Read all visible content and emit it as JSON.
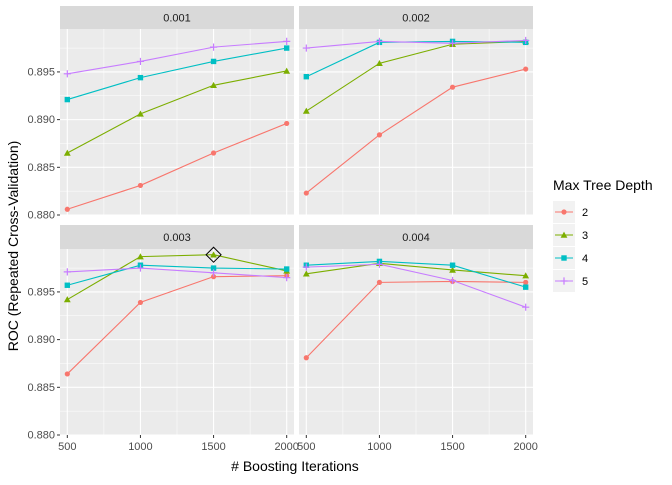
{
  "chart_data": {
    "type": "line",
    "xlabel": "# Boosting Iterations",
    "ylabel": "ROC (Repeated Cross-Validation)",
    "x": [
      500,
      1000,
      1500,
      2000
    ],
    "x_ticks": [
      500,
      1000,
      1500,
      2000
    ],
    "xlim": [
      450,
      2050
    ],
    "ylim": [
      0.88,
      0.8995
    ],
    "y_ticks": [
      0.88,
      0.885,
      0.89,
      0.895
    ],
    "y_tick_labels": [
      "0.880",
      "0.885",
      "0.890",
      "0.895"
    ],
    "grid": true,
    "legend": {
      "title": "Max Tree Depth",
      "placement": "right",
      "entries": [
        "2",
        "3",
        "4",
        "5"
      ]
    },
    "colors": {
      "2": "#F8766D",
      "3": "#7CAE00",
      "4": "#00BFC4",
      "5": "#C77CFF",
      "panel_bg": "#EBEBEB",
      "strip_bg": "#D9D9D9",
      "grid": "#FFFFFF",
      "axis_text": "#4D4D4D"
    },
    "facets": [
      {
        "label": "0.001",
        "series": [
          {
            "name": "2",
            "values": [
              0.8806,
              0.8831,
              0.8865,
              0.8896
            ]
          },
          {
            "name": "3",
            "values": [
              0.8865,
              0.8906,
              0.8936,
              0.8951
            ]
          },
          {
            "name": "4",
            "values": [
              0.8921,
              0.8944,
              0.8961,
              0.8975
            ]
          },
          {
            "name": "5",
            "values": [
              0.8948,
              0.8961,
              0.8976,
              0.8982
            ]
          }
        ]
      },
      {
        "label": "0.002",
        "series": [
          {
            "name": "2",
            "values": [
              0.8823,
              0.8884,
              0.8934,
              0.8953
            ]
          },
          {
            "name": "3",
            "values": [
              0.8909,
              0.8959,
              0.8979,
              0.8982
            ]
          },
          {
            "name": "4",
            "values": [
              0.8945,
              0.8981,
              0.8982,
              0.8981
            ]
          },
          {
            "name": "5",
            "values": [
              0.8975,
              0.8982,
              0.898,
              0.8983
            ]
          }
        ]
      },
      {
        "label": "0.003",
        "series": [
          {
            "name": "2",
            "values": [
              0.8864,
              0.8939,
              0.8966,
              0.8967
            ]
          },
          {
            "name": "3",
            "values": [
              0.8942,
              0.8987,
              0.8989,
              0.8972
            ]
          },
          {
            "name": "4",
            "values": [
              0.8957,
              0.8978,
              0.8975,
              0.8974
            ]
          },
          {
            "name": "5",
            "values": [
              0.8971,
              0.8975,
              0.897,
              0.8965
            ]
          }
        ],
        "highlight": {
          "series": "3",
          "x": 1500,
          "value": 0.8989,
          "marker": "diamond"
        }
      },
      {
        "label": "0.004",
        "series": [
          {
            "name": "2",
            "values": [
              0.8881,
              0.896,
              0.8961,
              0.896
            ]
          },
          {
            "name": "3",
            "values": [
              0.8969,
              0.898,
              0.8973,
              0.8967
            ]
          },
          {
            "name": "4",
            "values": [
              0.8978,
              0.8982,
              0.8978,
              0.8955
            ]
          },
          {
            "name": "5",
            "values": [
              0.8976,
              0.8979,
              0.8962,
              0.8934
            ]
          }
        ]
      }
    ]
  }
}
